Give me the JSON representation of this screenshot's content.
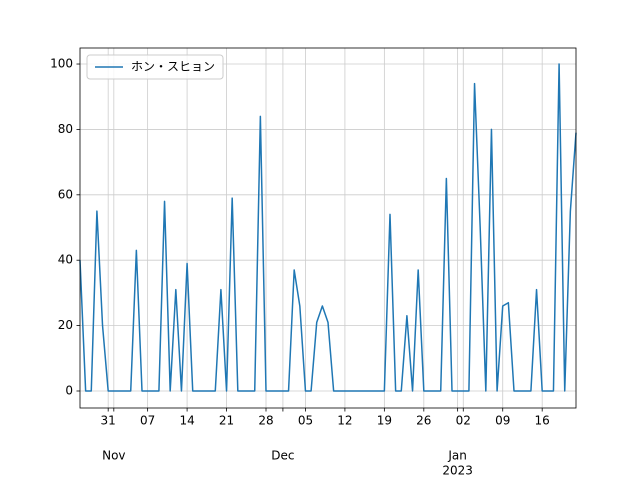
{
  "chart_data": {
    "type": "line",
    "x": [
      "2022-10-26",
      "2022-10-27",
      "2022-10-28",
      "2022-10-29",
      "2022-10-30",
      "2022-10-31",
      "2022-11-01",
      "2022-11-02",
      "2022-11-03",
      "2022-11-04",
      "2022-11-05",
      "2022-11-06",
      "2022-11-07",
      "2022-11-08",
      "2022-11-09",
      "2022-11-10",
      "2022-11-11",
      "2022-11-12",
      "2022-11-13",
      "2022-11-14",
      "2022-11-15",
      "2022-11-16",
      "2022-11-17",
      "2022-11-18",
      "2022-11-19",
      "2022-11-20",
      "2022-11-21",
      "2022-11-22",
      "2022-11-23",
      "2022-11-24",
      "2022-11-25",
      "2022-11-26",
      "2022-11-27",
      "2022-11-28",
      "2022-11-29",
      "2022-11-30",
      "2022-12-01",
      "2022-12-02",
      "2022-12-03",
      "2022-12-04",
      "2022-12-05",
      "2022-12-06",
      "2022-12-07",
      "2022-12-08",
      "2022-12-09",
      "2022-12-10",
      "2022-12-11",
      "2022-12-12",
      "2022-12-13",
      "2022-12-14",
      "2022-12-15",
      "2022-12-16",
      "2022-12-17",
      "2022-12-18",
      "2022-12-19",
      "2022-12-20",
      "2022-12-21",
      "2022-12-22",
      "2022-12-23",
      "2022-12-24",
      "2022-12-25",
      "2022-12-26",
      "2022-12-27",
      "2022-12-28",
      "2022-12-29",
      "2022-12-30",
      "2022-12-31",
      "2023-01-01",
      "2023-01-02",
      "2023-01-03",
      "2023-01-04",
      "2023-01-05",
      "2023-01-06",
      "2023-01-07",
      "2023-01-08",
      "2023-01-09",
      "2023-01-10",
      "2023-01-11",
      "2023-01-12",
      "2023-01-13",
      "2023-01-14",
      "2023-01-15",
      "2023-01-16",
      "2023-01-17",
      "2023-01-18",
      "2023-01-19",
      "2023-01-20",
      "2023-01-21",
      "2023-01-22"
    ],
    "series": [
      {
        "name": "ホン・スヒョン",
        "color": "#1f77b4",
        "values": [
          40,
          0,
          0,
          55,
          20,
          0,
          0,
          0,
          0,
          0,
          43,
          0,
          0,
          0,
          0,
          58,
          0,
          31,
          0,
          39,
          0,
          0,
          0,
          0,
          0,
          31,
          0,
          59,
          0,
          0,
          0,
          0,
          84,
          0,
          0,
          0,
          0,
          0,
          37,
          26,
          0,
          0,
          21,
          26,
          21,
          0,
          0,
          0,
          0,
          0,
          0,
          0,
          0,
          0,
          0,
          54,
          0,
          0,
          23,
          0,
          37,
          0,
          0,
          0,
          0,
          65,
          0,
          0,
          0,
          0,
          94,
          50,
          0,
          80,
          0,
          26,
          27,
          0,
          0,
          0,
          0,
          31,
          0,
          0,
          0,
          100,
          0,
          55,
          79
        ]
      }
    ],
    "xlim": [
      "2022-10-26",
      "2023-01-22"
    ],
    "xticks": [
      {
        "value": "2022-10-31",
        "label": "31"
      },
      {
        "value": "2022-11-07",
        "label": "07"
      },
      {
        "value": "2022-11-14",
        "label": "14"
      },
      {
        "value": "2022-11-21",
        "label": "21"
      },
      {
        "value": "2022-11-28",
        "label": "28"
      },
      {
        "value": "2022-12-05",
        "label": "05"
      },
      {
        "value": "2022-12-12",
        "label": "12"
      },
      {
        "value": "2022-12-19",
        "label": "19"
      },
      {
        "value": "2022-12-26",
        "label": "26"
      },
      {
        "value": "2023-01-02",
        "label": "02"
      },
      {
        "value": "2023-01-09",
        "label": "09"
      },
      {
        "value": "2023-01-16",
        "label": "16"
      }
    ],
    "month_labels": [
      {
        "value": "2022-11-01",
        "label": "Nov"
      },
      {
        "value": "2022-12-01",
        "label": "Dec"
      },
      {
        "value": "2023-01-01",
        "label": "Jan",
        "sublabel": "2023"
      }
    ],
    "ylim": [
      -5.2,
      104.9
    ],
    "yticks": [
      0,
      20,
      40,
      60,
      80,
      100
    ],
    "grid": true,
    "legend": "upper left"
  }
}
